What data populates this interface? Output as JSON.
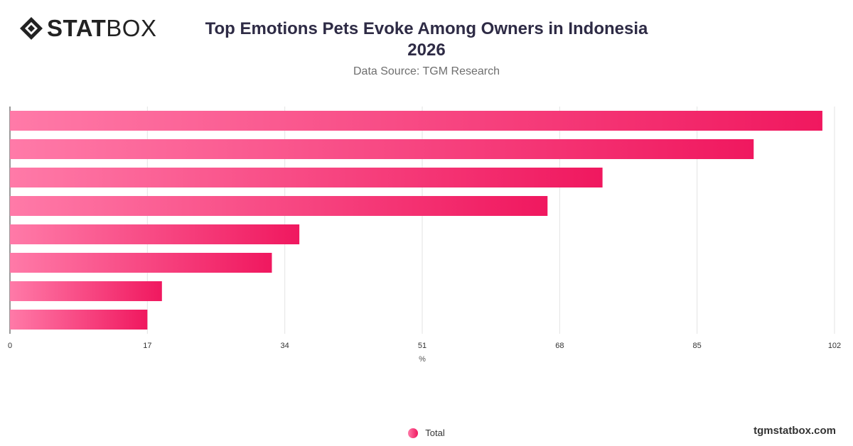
{
  "header": {
    "logo_bold": "STAT",
    "logo_light": "BOX",
    "title_line1": "Top Emotions Pets Evoke Among Owners in Indonesia",
    "title_line2": "2026",
    "subtitle": "Data Source: TGM Research"
  },
  "footer": {
    "legend_label": "Total",
    "site": "tgmstatbox.com"
  },
  "colors": {
    "bar_start": "#ff7aa8",
    "bar_end": "#f0185f",
    "grid": "#e3e3e3",
    "axis": "#333333"
  },
  "chart_data": {
    "type": "bar",
    "orientation": "horizontal",
    "categories": [
      "",
      "",
      "",
      "",
      "",
      "",
      "",
      ""
    ],
    "series": [
      {
        "name": "Total",
        "values": [
          100.5,
          92,
          73.3,
          66.5,
          35.8,
          32.4,
          18.8,
          17
        ]
      }
    ],
    "xlabel": "%",
    "xticks": [
      0,
      17,
      34,
      51,
      68,
      85,
      102
    ],
    "xlim": [
      0,
      102
    ],
    "grid": true,
    "legend": "bottom-center"
  }
}
